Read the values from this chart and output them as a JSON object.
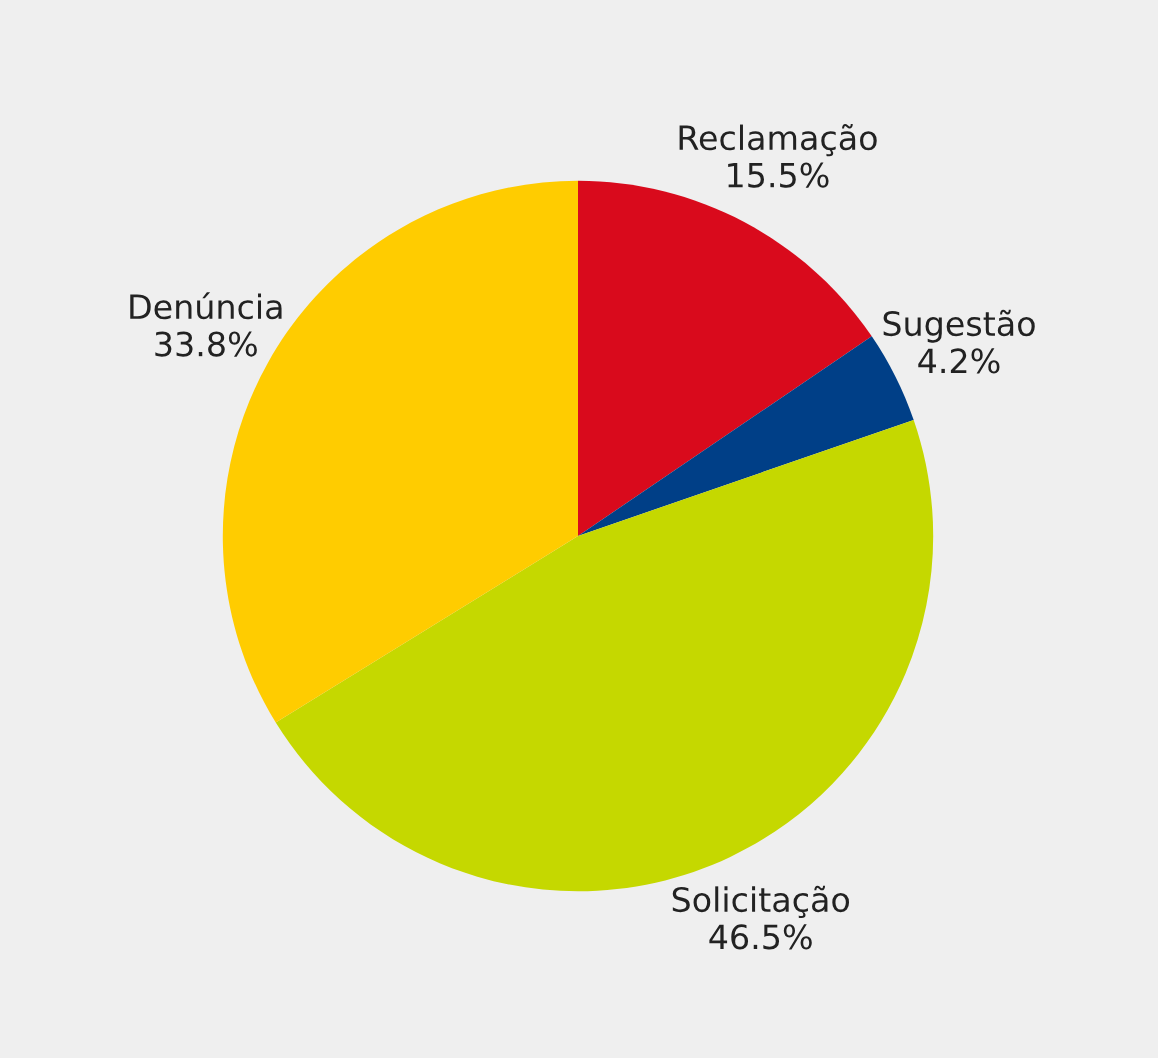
{
  "chart_data": {
    "type": "pie",
    "categories": [
      "Reclamação",
      "Sugestão",
      "Solicitação",
      "Denúncia"
    ],
    "values": [
      15.5,
      4.2,
      46.5,
      33.8
    ],
    "value_labels": [
      "15.5%",
      "4.2%",
      "46.5%",
      "33.8%"
    ],
    "colors": [
      "#d90a1c",
      "#003f87",
      "#c5d800",
      "#ffcc00"
    ],
    "legend": false
  }
}
